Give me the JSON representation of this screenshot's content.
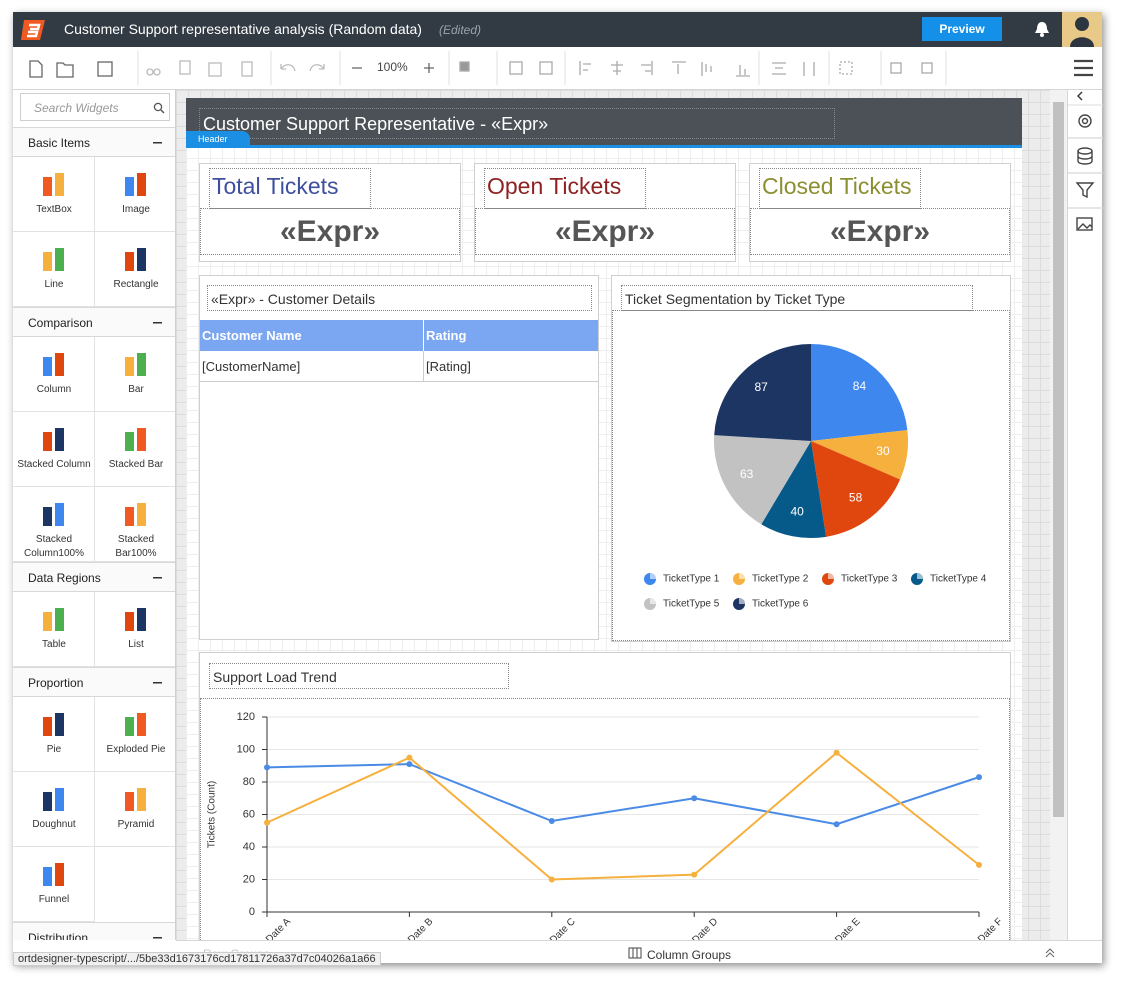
{
  "app": {
    "title": "Customer Support representative analysis (Random data)",
    "status": "(Edited)",
    "preview": "Preview"
  },
  "toolbar": {
    "zoom": "100%"
  },
  "sidebar": {
    "search_placeholder": "Search Widgets",
    "groups": [
      {
        "title": "Basic Items",
        "items": [
          "TextBox",
          "Image",
          "Line",
          "Rectangle"
        ]
      },
      {
        "title": "Comparison",
        "items": [
          "Column",
          "Bar",
          "Stacked Column",
          "Stacked Bar",
          "Stacked Column100%",
          "Stacked Bar100%"
        ]
      },
      {
        "title": "Data Regions",
        "items": [
          "Table",
          "List"
        ]
      },
      {
        "title": "Proportion",
        "items": [
          "Pie",
          "Exploded Pie",
          "Doughnut",
          "Pyramid",
          "Funnel"
        ]
      },
      {
        "title": "Distribution"
      }
    ]
  },
  "report": {
    "header": {
      "title": "Customer Support Representative - «Expr»",
      "tab": "Header"
    },
    "kpis": [
      {
        "title": "Total Tickets",
        "value": "«Expr»",
        "color": "#3d4f9e"
      },
      {
        "title": "Open Tickets",
        "value": "«Expr»",
        "color": "#8e2222"
      },
      {
        "title": "Closed Tickets",
        "value": "«Expr»",
        "color": "#8b8f30"
      }
    ],
    "table": {
      "title": "«Expr» - Customer Details",
      "columns": [
        "Customer Name",
        "Rating"
      ],
      "rows": [
        [
          "[CustomerName]",
          "[Rating]"
        ]
      ]
    }
  },
  "chart_data": [
    {
      "type": "pie",
      "title": "Ticket Segmentation by Ticket Type",
      "categories": [
        "TicketType 1",
        "TicketType 2",
        "TicketType 3",
        "TicketType 4",
        "TicketType 5",
        "TicketType 6"
      ],
      "values": [
        84,
        30,
        58,
        40,
        63,
        87
      ],
      "colors": [
        "#3e87ee",
        "#f6b03e",
        "#e0470f",
        "#065a8a",
        "#c2c2c2",
        "#1c3563"
      ]
    },
    {
      "type": "line",
      "title": "Support Load Trend",
      "y_label": "Tickets (Count)",
      "categories": [
        "Date A",
        "Date B",
        "Date C",
        "Date D",
        "Date E",
        "Date F"
      ],
      "series": [
        {
          "color": "#4a8be6",
          "values": [
            89,
            91,
            56,
            70,
            54,
            83
          ]
        },
        {
          "color": "#f6b03e",
          "values": [
            55,
            95,
            20,
            23,
            98,
            29
          ]
        }
      ],
      "ylim": [
        0,
        120
      ],
      "yticks": [
        0,
        20,
        40,
        60,
        80,
        100,
        120
      ],
      "grid": true
    }
  ],
  "status_bar": {
    "row_groups": "Row Groups",
    "column_groups": "Column Groups",
    "url": "ortdesigner-typescript/.../5be33d1673176cd17811726a37d7c04026a1a66"
  }
}
